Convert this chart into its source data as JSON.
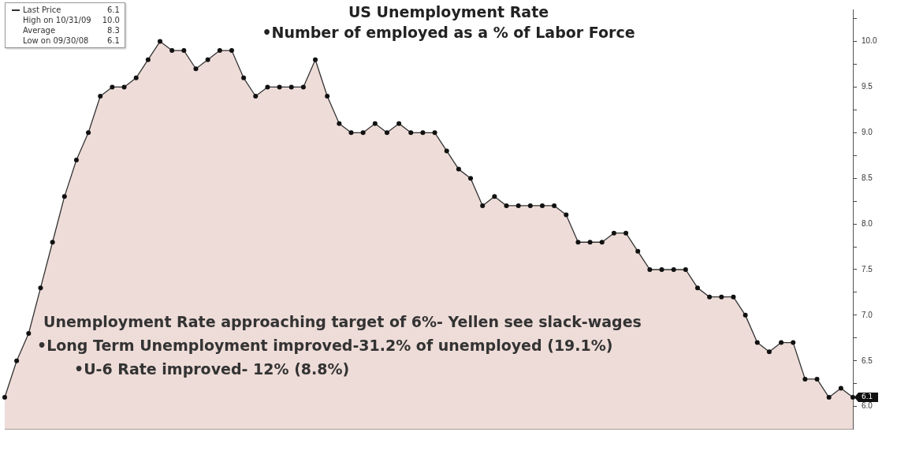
{
  "chart_data": {
    "type": "area",
    "title": "US Unemployment Rate",
    "subtitle": "•Number of employed as a % of Labor Force",
    "annotations": [
      {
        "text": "6.1",
        "y": 6.1
      },
      "High on 10/31/09 10.0",
      "Average 8.3",
      "Low on 09/30/08 6.1",
      "Unemployment Rate approaching target of 6%- Yellen see slack-wages",
      "•Long Term Unemployment improved-31.2% of unemployed  (19.1%)",
      "•U-6 Rate improved- 12% (8.8%)"
    ],
    "categories": [
      null,
      null,
      null,
      null,
      null,
      null,
      null,
      null,
      null,
      null,
      null,
      null,
      null,
      null,
      null,
      null,
      null,
      null,
      null,
      null,
      null,
      null,
      null,
      null,
      null,
      null,
      null,
      null,
      null,
      null,
      null,
      null,
      null,
      null,
      null,
      null,
      null,
      null,
      null,
      null,
      null,
      null,
      null,
      null,
      null,
      null,
      null,
      null,
      null,
      null,
      null,
      null,
      null,
      null,
      null,
      null,
      null,
      null,
      null,
      null,
      null,
      null,
      null,
      null,
      null,
      null,
      null,
      null,
      null,
      null,
      null,
      null
    ],
    "series": [
      {
        "name": "Last Price",
        "color": "#333333",
        "values": [
          6.1,
          6.5,
          6.8,
          7.3,
          7.8,
          8.3,
          8.7,
          9.0,
          9.4,
          9.5,
          9.5,
          9.6,
          9.8,
          10.0,
          9.9,
          9.9,
          9.7,
          9.8,
          9.9,
          9.9,
          9.6,
          9.4,
          9.5,
          9.5,
          9.5,
          9.5,
          9.8,
          9.4,
          9.1,
          9.0,
          9.0,
          9.1,
          9.0,
          9.1,
          9.0,
          9.0,
          9.0,
          8.8,
          8.6,
          8.5,
          8.2,
          8.3,
          8.2,
          8.2,
          8.2,
          8.2,
          8.2,
          8.1,
          7.8,
          7.8,
          7.8,
          7.9,
          7.9,
          7.7,
          7.5,
          7.5,
          7.5,
          7.5,
          7.3,
          7.2,
          7.2,
          7.2,
          7.0,
          6.7,
          6.6,
          6.7,
          6.7,
          6.3,
          6.3,
          6.1,
          6.2,
          6.1
        ]
      }
    ],
    "ylim": [
      5.75,
      10.35
    ],
    "yticks": [
      {
        "value": 6.0,
        "label": "6.0"
      },
      {
        "value": 6.25,
        "label": null
      },
      6.5,
      {
        "value": 6.75,
        "label": null
      },
      {
        "value": 7.0,
        "label": "7.0"
      },
      {
        "value": 7.25,
        "label": null
      },
      7.5,
      {
        "value": 7.75,
        "label": null
      },
      {
        "value": 8.0,
        "label": "8.0"
      },
      {
        "value": 8.25,
        "label": null
      },
      8.5,
      {
        "value": 8.75,
        "label": null
      },
      {
        "value": 9.0,
        "label": "9.0"
      },
      {
        "value": 9.25,
        "label": null
      },
      9.5,
      {
        "value": 9.75,
        "label": null
      },
      {
        "value": 10.0,
        "label": "10.0"
      },
      {
        "value": 10.25,
        "label": null
      }
    ],
    "legend": "top left",
    "marker": "circle",
    "line_style": "solid",
    "grid": false
  }
}
